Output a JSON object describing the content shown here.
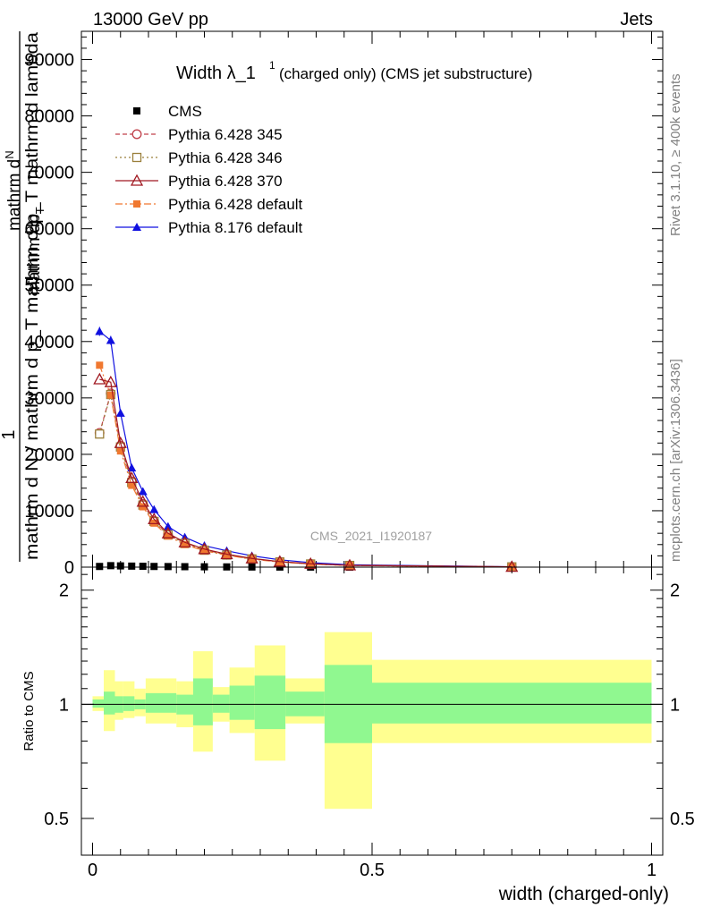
{
  "header": {
    "energy_label": "13000 GeV pp",
    "process_label": "Jets"
  },
  "side": {
    "rivet_label": "Rivet 3.1.10, ≥ 400k events",
    "source_label": "mcplots.cern.ch [arXiv:1306.3436]"
  },
  "watermark": "CMS_2021_I1920187",
  "colors": {
    "cms": "#000000",
    "p345": "#c0404a",
    "p346": "#9a7f3a",
    "p370": "#a01820",
    "p6def": "#f07830",
    "p8def": "#1010e0",
    "band_inner": "#90f890",
    "band_outer": "#ffff90"
  },
  "chart_data": [
    {
      "type": "line",
      "title_main": "Width λ_1",
      "title_sup": "1",
      "title_rest": "(charged only) (CMS jet substructure)",
      "ylabel_1": "1",
      "ylabel_2": "mathrm d N / mathrm d p_T mathrm d p_T mathrm d lambda",
      "ylabel_parts": [
        "mathrm d",
        "N",
        "mathrm dp",
        "T",
        "mathrm dp",
        "T",
        "mathrm d",
        "lambda"
      ],
      "ylabel_sub_T": "T",
      "xlim": [
        -0.02,
        1.02
      ],
      "ylim": [
        0,
        95000
      ],
      "yticks": [
        0,
        10000,
        20000,
        30000,
        40000,
        50000,
        60000,
        70000,
        80000,
        90000
      ],
      "ytick_labels": [
        "0",
        "10000",
        "20000",
        "30000",
        "40000",
        "50000",
        "60000",
        "70000",
        "80000",
        "90000"
      ],
      "x": [
        0.0125,
        0.0325,
        0.05,
        0.07,
        0.09,
        0.11,
        0.135,
        0.165,
        0.2,
        0.24,
        0.285,
        0.335,
        0.39,
        0.46,
        0.75
      ],
      "series": [
        {
          "name": "CMS",
          "key": "cms",
          "marker": "square-filled",
          "dash": "",
          "values": [
            120,
            260,
            220,
            180,
            150,
            120,
            100,
            80,
            60,
            40,
            25,
            15,
            10,
            5,
            1
          ]
        },
        {
          "name": "Pythia 6.428 345",
          "key": "p345",
          "marker": "circle-open",
          "dash": "5,3",
          "values": [
            23800,
            30800,
            21500,
            15200,
            11200,
            8200,
            5800,
            4300,
            3100,
            2200,
            1500,
            950,
            580,
            310,
            50
          ]
        },
        {
          "name": "Pythia 6.428 346",
          "key": "p346",
          "marker": "square-open",
          "dash": "2,3",
          "values": [
            23600,
            30600,
            21300,
            15000,
            11000,
            8100,
            5700,
            4200,
            3000,
            2150,
            1450,
            920,
            560,
            300,
            50
          ]
        },
        {
          "name": "Pythia 6.428 370",
          "key": "p370",
          "marker": "triangle-open",
          "dash": "",
          "values": [
            33300,
            32800,
            22000,
            15800,
            11600,
            8500,
            6000,
            4400,
            3200,
            2300,
            1550,
            980,
            600,
            320,
            55
          ]
        },
        {
          "name": "Pythia 6.428 default",
          "key": "p6def",
          "marker": "square-filled-small",
          "dash": "8,3,2,3",
          "values": [
            35800,
            30500,
            20600,
            14500,
            10700,
            7800,
            5500,
            4000,
            2900,
            2100,
            1400,
            900,
            550,
            290,
            50
          ]
        },
        {
          "name": "Pythia 8.176 default",
          "key": "p8def",
          "marker": "triangle-filled",
          "dash": "",
          "values": [
            41800,
            40200,
            27300,
            17600,
            13400,
            10200,
            7200,
            5300,
            3800,
            2900,
            2000,
            1300,
            800,
            420,
            70
          ]
        }
      ]
    },
    {
      "type": "area",
      "ylabel": "Ratio to CMS",
      "xlabel": "width (charged-only)",
      "xlim": [
        -0.02,
        1.02
      ],
      "ylim": [
        0.4,
        2.3
      ],
      "yscale": "log",
      "xticks": [
        0,
        0.5,
        1
      ],
      "xtick_labels": [
        "0",
        "0.5",
        "1"
      ],
      "yticks": [
        0.5,
        1,
        2
      ],
      "ytick_labels": [
        "0.5",
        "1",
        "2"
      ],
      "bin_edges": [
        0,
        0.02,
        0.04,
        0.055,
        0.075,
        0.095,
        0.12,
        0.15,
        0.18,
        0.215,
        0.245,
        0.29,
        0.345,
        0.415,
        0.5,
        1.0
      ],
      "inner_band": [
        [
          0.98,
          1.03
        ],
        [
          0.94,
          1.08
        ],
        [
          0.95,
          1.05
        ],
        [
          0.96,
          1.05
        ],
        [
          0.97,
          1.03
        ],
        [
          0.95,
          1.07
        ],
        [
          0.95,
          1.07
        ],
        [
          0.94,
          1.06
        ],
        [
          0.88,
          1.17
        ],
        [
          0.95,
          1.06
        ],
        [
          0.91,
          1.12
        ],
        [
          0.86,
          1.19
        ],
        [
          0.93,
          1.08
        ],
        [
          0.79,
          1.27
        ],
        [
          0.89,
          1.14
        ]
      ],
      "outer_band": [
        [
          0.96,
          1.05
        ],
        [
          0.85,
          1.23
        ],
        [
          0.91,
          1.15
        ],
        [
          0.92,
          1.15
        ],
        [
          0.93,
          1.1
        ],
        [
          0.89,
          1.17
        ],
        [
          0.89,
          1.17
        ],
        [
          0.87,
          1.15
        ],
        [
          0.75,
          1.38
        ],
        [
          0.9,
          1.11
        ],
        [
          0.84,
          1.25
        ],
        [
          0.71,
          1.43
        ],
        [
          0.89,
          1.17
        ],
        [
          0.53,
          1.55
        ],
        [
          0.79,
          1.31
        ]
      ],
      "reference": 1
    }
  ]
}
